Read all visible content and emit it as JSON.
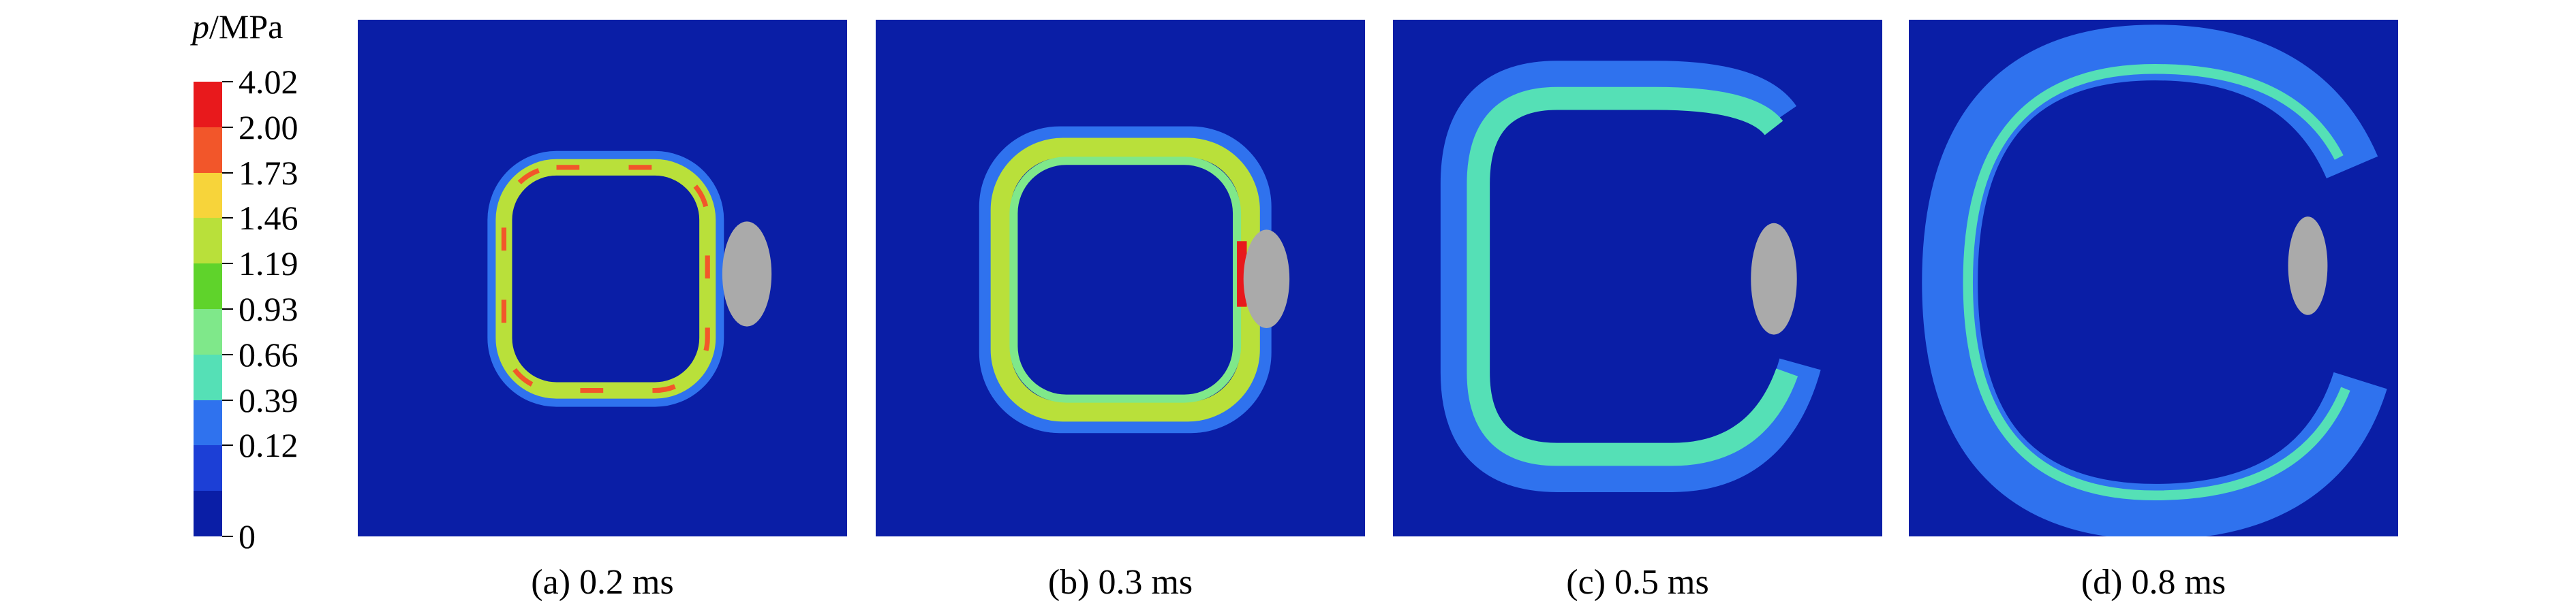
{
  "legend": {
    "symbol": "p",
    "unit": "/MPa",
    "ticks": [
      "4.02",
      "2.00",
      "1.73",
      "1.46",
      "1.19",
      "0.93",
      "0.66",
      "0.39",
      "0.12",
      "0"
    ],
    "colors": [
      "#e8191c",
      "#f2562a",
      "#f7d43a",
      "#b9e03a",
      "#5fd32b",
      "#7fe88a",
      "#55e0b6",
      "#2f72ee",
      "#1c3fd6",
      "#0a1ea6"
    ]
  },
  "panels": [
    {
      "caption": "(a) 0.2 ms"
    },
    {
      "caption": "(b) 0.3 ms"
    },
    {
      "caption": "(c) 0.5 ms"
    },
    {
      "caption": "(d) 0.8 ms"
    }
  ]
}
